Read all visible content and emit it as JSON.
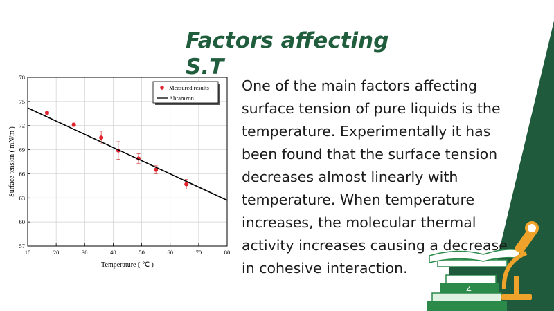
{
  "slide": {
    "title": "Factors affecting S.T",
    "body": "One of the main factors affecting surface  tension of pure liquids is the temperature. Experimentally it  has been  found that the surface tension decreases  almost linearly with temperature. When  temperature increases, the molecular  thermal activity increases causing a  decrease in cohesive interaction.",
    "page_number": "4",
    "accent_color": "#1f5d3d",
    "stripe_color": "#1e5a3b"
  },
  "chart_data": {
    "type": "scatter",
    "xlabel": "Temperature ( ℃ )",
    "ylabel": "Surface tension ( mN/m )",
    "xlim": [
      10,
      80
    ],
    "ylim": [
      57,
      78
    ],
    "x_ticks": [
      10,
      20,
      30,
      40,
      50,
      60,
      70,
      80
    ],
    "y_ticks": [
      57,
      60,
      63,
      66,
      69,
      72,
      75,
      78
    ],
    "grid": true,
    "legend_position": "top-right",
    "series": [
      {
        "name": "Measured results",
        "kind": "points",
        "color": "#e0232d",
        "x": [
          16.8,
          26.2,
          35.8,
          41.8,
          48.9,
          55.0,
          65.7
        ],
        "y": [
          73.6,
          72.1,
          70.5,
          68.9,
          67.9,
          66.5,
          64.7
        ],
        "error": [
          0.2,
          0.2,
          0.8,
          1.1,
          0.6,
          0.5,
          0.6
        ]
      },
      {
        "name": "Abramzon",
        "kind": "line",
        "color": "#000000",
        "x": [
          10,
          80
        ],
        "y": [
          74.2,
          62.7
        ]
      }
    ]
  }
}
